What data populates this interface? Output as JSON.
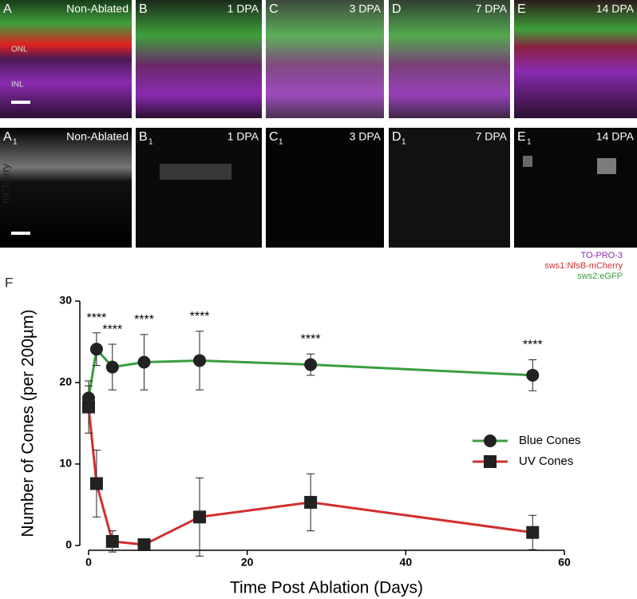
{
  "panels": {
    "top": [
      {
        "letter": "A",
        "label": "Non-Ablated",
        "layers": [
          "ONL",
          "INL"
        ]
      },
      {
        "letter": "B",
        "label": "1 DPA"
      },
      {
        "letter": "C",
        "label": "3 DPA"
      },
      {
        "letter": "D",
        "label": "7 DPA"
      },
      {
        "letter": "E",
        "label": "14 DPA"
      }
    ],
    "bottom": [
      {
        "letter": "A",
        "sub": "1",
        "label": "Non-Ablated"
      },
      {
        "letter": "B",
        "sub": "1",
        "label": "1 DPA"
      },
      {
        "letter": "C",
        "sub": "1",
        "label": "3 DPA"
      },
      {
        "letter": "D",
        "sub": "1",
        "label": "7 DPA"
      },
      {
        "letter": "E",
        "sub": "1",
        "label": "14 DPA"
      }
    ],
    "channel": "mCherry",
    "stains": [
      {
        "name": "TO-PRO-3",
        "color": "#8a2bb0"
      },
      {
        "name": "sws1:NfsB-mCherry",
        "color": "#d32f2f"
      },
      {
        "name": "sws2:eGFP",
        "color": "#3a9e3f"
      }
    ]
  },
  "chart_data": {
    "type": "line",
    "panel": "F",
    "x_label": "Time Post Ablation (Days)",
    "y_label": "Number of Cones (per 200µm)",
    "x": [
      0,
      1,
      3,
      7,
      14,
      28,
      56
    ],
    "series": [
      {
        "name": "Blue Cones",
        "color": "#3a9e3f",
        "marker": "circle",
        "values": [
          18.1,
          24.1,
          21.9,
          22.5,
          22.7,
          22.2,
          20.9
        ],
        "errors": [
          1.5,
          2.0,
          2.8,
          3.4,
          3.6,
          1.3,
          1.9
        ]
      },
      {
        "name": "UV Cones",
        "color": "#d32f2f",
        "marker": "square",
        "values": [
          17.0,
          7.6,
          0.5,
          0.1,
          3.5,
          5.3,
          1.6
        ],
        "errors": [
          3.2,
          4.1,
          1.3,
          0.1,
          4.8,
          3.5,
          2.1
        ]
      }
    ],
    "annotations": [
      {
        "text": "****",
        "x": 1
      },
      {
        "text": "****",
        "x": 3
      },
      {
        "text": "****",
        "x": 7
      },
      {
        "text": "****",
        "x": 14
      },
      {
        "text": "****",
        "x": 28
      },
      {
        "text": "****",
        "x": 56
      }
    ],
    "xlim": [
      0,
      60
    ],
    "xticks": [
      0,
      20,
      40,
      60
    ],
    "ylim": [
      0,
      30
    ],
    "yticks": [
      0,
      10,
      20,
      30
    ],
    "legend": "right"
  }
}
